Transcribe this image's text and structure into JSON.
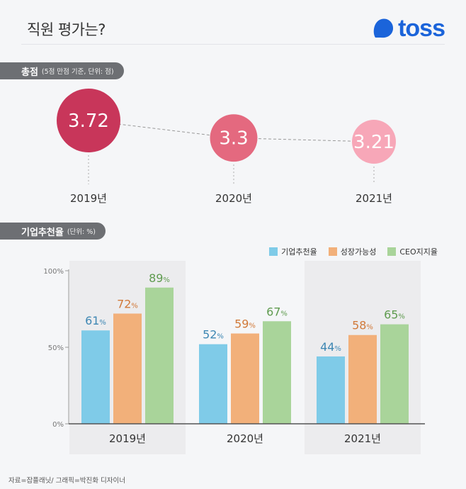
{
  "header": {
    "title": "직원 평가는?",
    "logo_text": "toss",
    "logo_color": "#1b64da"
  },
  "sections": {
    "score": {
      "label": "총점",
      "note": "(5점 만점 기준, 단위: 점)"
    },
    "recommend": {
      "label": "기업추천율",
      "note": "(단위: %)"
    }
  },
  "source": "자료=잡플래닛/ 그래픽=박진화 디자이너",
  "chart_data": [
    {
      "type": "scatter",
      "categories": [
        "2019년",
        "2020년",
        "2021년"
      ],
      "values": [
        3.72,
        3.3,
        3.21
      ],
      "value_labels": [
        "3.72",
        "3.3",
        "3.21"
      ],
      "colors": [
        "#c8365a",
        "#e4697f",
        "#f7a7b8"
      ],
      "title": "",
      "xlabel": "",
      "ylabel": ""
    },
    {
      "type": "bar",
      "categories": [
        "2019년",
        "2020년",
        "2021년"
      ],
      "series": [
        {
          "name": "기업추천율",
          "values": [
            61,
            52,
            44
          ],
          "color": "#7fcbe8",
          "label_color": "#3e87b3"
        },
        {
          "name": "성장가능성",
          "values": [
            72,
            59,
            58
          ],
          "color": "#f2b07a",
          "label_color": "#d17a3a"
        },
        {
          "name": "CEO지지율",
          "values": [
            89,
            67,
            65
          ],
          "color": "#a9d49a",
          "label_color": "#5f9b4f"
        }
      ],
      "value_suffix": "%",
      "yticks": [
        "100%",
        "50%",
        "0%"
      ],
      "ylim": [
        0,
        100
      ],
      "grid": false,
      "legend": "top-right"
    }
  ]
}
